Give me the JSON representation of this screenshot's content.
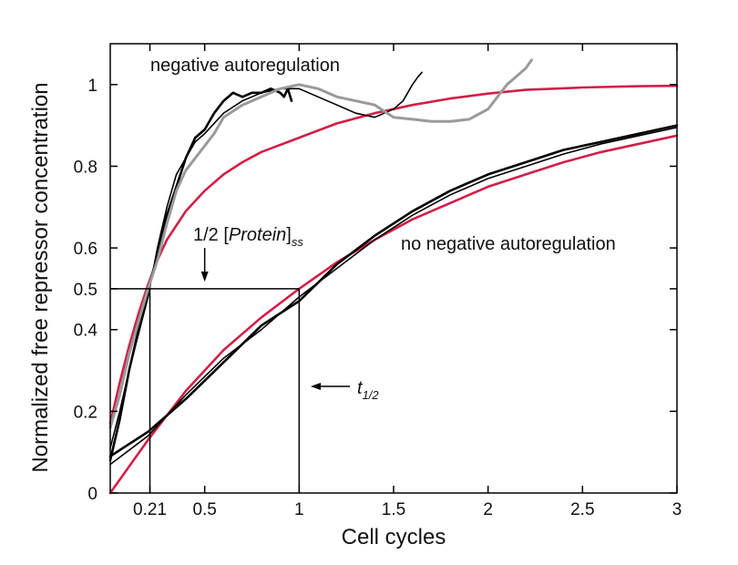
{
  "chart_data": {
    "type": "line",
    "title": "",
    "xlabel": "Cell cycles",
    "ylabel": "Normalized free repressor concentration",
    "xlim": [
      0,
      3
    ],
    "ylim": [
      0,
      1.1
    ],
    "grid": false,
    "x_ticks": [
      {
        "value": 0.21,
        "label": "0.21"
      },
      {
        "value": 0.5,
        "label": "0.5"
      },
      {
        "value": 1,
        "label": "1"
      },
      {
        "value": 1.5,
        "label": "1.5"
      },
      {
        "value": 2,
        "label": "2"
      },
      {
        "value": 2.5,
        "label": "2.5"
      },
      {
        "value": 3,
        "label": "3"
      }
    ],
    "y_ticks": [
      {
        "value": 0,
        "label": "0"
      },
      {
        "value": 0.2,
        "label": "0.2"
      },
      {
        "value": 0.4,
        "label": "0.4"
      },
      {
        "value": 0.5,
        "label": "0.5"
      },
      {
        "value": 0.6,
        "label": "0.6"
      },
      {
        "value": 0.8,
        "label": "0.8"
      },
      {
        "value": 1,
        "label": "1"
      }
    ],
    "annotations": {
      "negative": "negative autoregulation",
      "no_negative": "no negative autoregulation",
      "half_protein_main": "1/2 [",
      "half_protein_italic": "Protein",
      "half_protein_close": "]",
      "half_protein_sub": "ss",
      "t_half_main": "t",
      "t_half_sub": "1/2"
    },
    "colors": {
      "model": "#d21f47",
      "data_black": "#000000",
      "data_gray": "#9a9a9a",
      "guides": "#000000"
    },
    "guide_lines": {
      "half_level": 0.5,
      "t_half_negative": 0.21,
      "t_half_no_negative": 1
    },
    "series": [
      {
        "group": "negative autoregulation",
        "kind": "model",
        "color_key": "model",
        "x": [
          0,
          0.05,
          0.1,
          0.15,
          0.2,
          0.25,
          0.3,
          0.4,
          0.5,
          0.6,
          0.7,
          0.8,
          1.0,
          1.2,
          1.4,
          1.6,
          1.8,
          2.0,
          2.2,
          2.5,
          2.8,
          3.0
        ],
        "y": [
          0.17,
          0.27,
          0.36,
          0.44,
          0.51,
          0.57,
          0.62,
          0.69,
          0.74,
          0.78,
          0.81,
          0.835,
          0.87,
          0.905,
          0.93,
          0.95,
          0.966,
          0.978,
          0.987,
          0.993,
          0.996,
          0.997
        ]
      },
      {
        "group": "negative autoregulation",
        "kind": "data",
        "color_key": "data_black",
        "width": 2.6,
        "x": [
          0,
          0.05,
          0.1,
          0.15,
          0.2,
          0.25,
          0.3,
          0.35,
          0.4,
          0.45,
          0.5,
          0.55,
          0.6,
          0.65,
          0.7,
          0.75,
          0.8,
          0.85,
          0.9,
          0.92,
          0.94,
          0.96
        ],
        "y": [
          0.08,
          0.18,
          0.3,
          0.4,
          0.5,
          0.58,
          0.68,
          0.75,
          0.82,
          0.87,
          0.89,
          0.93,
          0.96,
          0.98,
          0.97,
          0.98,
          0.98,
          0.99,
          0.98,
          0.97,
          0.99,
          0.96
        ]
      },
      {
        "group": "negative autoregulation",
        "kind": "data",
        "color_key": "data_black",
        "width": 1.6,
        "x": [
          0,
          0.05,
          0.1,
          0.15,
          0.2,
          0.25,
          0.3,
          0.35,
          0.4,
          0.45,
          0.5,
          0.6,
          0.7,
          0.8,
          0.9,
          1.0,
          1.1,
          1.2,
          1.3,
          1.4,
          1.5,
          1.55,
          1.6,
          1.63,
          1.65
        ],
        "y": [
          0.11,
          0.2,
          0.3,
          0.39,
          0.48,
          0.6,
          0.7,
          0.78,
          0.82,
          0.86,
          0.88,
          0.93,
          0.96,
          0.98,
          0.99,
          0.99,
          0.97,
          0.95,
          0.93,
          0.92,
          0.94,
          0.96,
          1.0,
          1.02,
          1.03
        ]
      },
      {
        "group": "negative autoregulation",
        "kind": "data",
        "color_key": "data_gray",
        "width": 3,
        "x": [
          0,
          0.05,
          0.1,
          0.15,
          0.2,
          0.25,
          0.3,
          0.35,
          0.4,
          0.45,
          0.5,
          0.55,
          0.6,
          0.7,
          0.8,
          0.9,
          1.0,
          1.1,
          1.2,
          1.3,
          1.4,
          1.5,
          1.6,
          1.7,
          1.8,
          1.9,
          2.0,
          2.05,
          2.1,
          2.15,
          2.2,
          2.23
        ],
        "y": [
          0.16,
          0.24,
          0.34,
          0.42,
          0.5,
          0.57,
          0.66,
          0.74,
          0.79,
          0.82,
          0.85,
          0.88,
          0.92,
          0.95,
          0.97,
          0.99,
          1.0,
          0.99,
          0.97,
          0.96,
          0.95,
          0.92,
          0.915,
          0.91,
          0.91,
          0.915,
          0.94,
          0.97,
          1.0,
          1.02,
          1.04,
          1.06
        ]
      },
      {
        "group": "no negative autoregulation",
        "kind": "model",
        "color_key": "model",
        "x": [
          0,
          0.2,
          0.4,
          0.6,
          0.8,
          1.0,
          1.2,
          1.4,
          1.6,
          1.8,
          2.0,
          2.2,
          2.4,
          2.6,
          2.8,
          3.0
        ],
        "y": [
          0.0,
          0.13,
          0.25,
          0.35,
          0.43,
          0.5,
          0.565,
          0.62,
          0.67,
          0.71,
          0.75,
          0.78,
          0.81,
          0.835,
          0.855,
          0.875
        ]
      },
      {
        "group": "no negative autoregulation",
        "kind": "data",
        "color_key": "data_black",
        "width": 2.6,
        "x": [
          0,
          0.2,
          0.4,
          0.6,
          0.8,
          1.0,
          1.2,
          1.4,
          1.6,
          1.8,
          2.0,
          2.2,
          2.4,
          2.6,
          2.8,
          3.0
        ],
        "y": [
          0.09,
          0.15,
          0.23,
          0.32,
          0.41,
          0.47,
          0.56,
          0.63,
          0.69,
          0.74,
          0.78,
          0.81,
          0.84,
          0.86,
          0.88,
          0.9
        ]
      },
      {
        "group": "no negative autoregulation",
        "kind": "data",
        "color_key": "data_black",
        "width": 1.6,
        "x": [
          0,
          0.2,
          0.4,
          0.6,
          0.8,
          1.0,
          1.2,
          1.4,
          1.6,
          1.8,
          2.0,
          2.2,
          2.4,
          2.6,
          2.8,
          3.0
        ],
        "y": [
          0.07,
          0.14,
          0.24,
          0.33,
          0.4,
          0.48,
          0.55,
          0.62,
          0.68,
          0.73,
          0.77,
          0.8,
          0.83,
          0.855,
          0.875,
          0.895
        ]
      }
    ]
  }
}
